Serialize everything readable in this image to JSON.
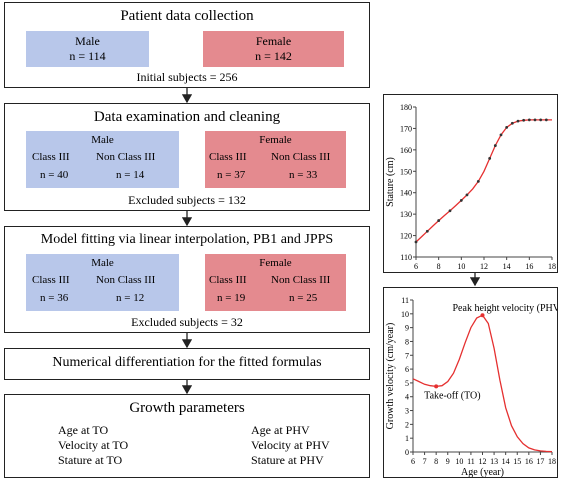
{
  "step1": {
    "title": "Patient data collection",
    "male_label": "Male",
    "male_n": "n = 114",
    "female_label": "Female",
    "female_n": "n = 142",
    "subjects": "Initial subjects = 256"
  },
  "step2": {
    "title": "Data examination and cleaning",
    "male_label": "Male",
    "female_label": "Female",
    "m_c3": "Class III",
    "m_nc3": "Non Class III",
    "m_c3_n": "n = 40",
    "m_nc3_n": "n = 14",
    "f_c3": "Class III",
    "f_nc3": "Non Class III",
    "f_c3_n": "n = 37",
    "f_nc3_n": "n = 33",
    "excluded": "Excluded subjects = 132"
  },
  "step3": {
    "title": "Model fitting via linear interpolation, PB1 and JPPS",
    "male_label": "Male",
    "female_label": "Female",
    "m_c3": "Class III",
    "m_nc3": "Non Class III",
    "m_c3_n": "n = 36",
    "m_nc3_n": "n = 12",
    "f_c3": "Class III",
    "f_nc3": "Non Class III",
    "f_c3_n": "n = 19",
    "f_nc3_n": "n = 25",
    "excluded": "Excluded subjects = 32"
  },
  "step4": {
    "title": "Numerical differentiation for the fitted formulas"
  },
  "step5": {
    "title": "Growth parameters",
    "left": [
      "Age at TO",
      "Velocity at TO",
      "Stature at TO"
    ],
    "right": [
      "Age at PHV",
      "Velocity at PHV",
      "Stature at PHV"
    ]
  },
  "colors": {
    "male": "#b8c7ea",
    "female": "#e48a8f",
    "curve": "#e53030"
  },
  "chart_data": [
    {
      "type": "line",
      "xlabel": "Age (year)",
      "ylabel": "Stature (cm)",
      "xlim": [
        6,
        18
      ],
      "ylim": [
        110,
        180
      ],
      "x_ticks": [
        "6",
        "8",
        "10",
        "12",
        "14",
        "16",
        "18"
      ],
      "y_ticks": [
        "110",
        "120",
        "130",
        "140",
        "150",
        "160",
        "170",
        "180"
      ],
      "series": [
        {
          "x": [
            6,
            6.5,
            7,
            7.5,
            8,
            8.5,
            9,
            9.5,
            10,
            10.5,
            11,
            11.5,
            12,
            12.5,
            13,
            13.5,
            14,
            14.5,
            15,
            15.5,
            16,
            16.5,
            17,
            17.5,
            18
          ],
          "y": [
            117,
            119.5,
            122,
            124.5,
            127,
            129.3,
            131.6,
            134,
            136.4,
            139,
            141.8,
            145.3,
            150,
            156,
            162,
            167,
            170.5,
            172.4,
            173.4,
            173.8,
            174,
            174,
            174,
            174,
            174
          ]
        }
      ],
      "markers": {
        "x": [
          6,
          7,
          8,
          9,
          10,
          10.5,
          11.5,
          12.5,
          13,
          13.5,
          14,
          14.5,
          15,
          15.5,
          16,
          16.5,
          17,
          17.5
        ],
        "y": [
          117,
          122,
          127,
          131.6,
          136.4,
          139,
          145.3,
          156,
          162,
          167,
          170.5,
          172.4,
          173.4,
          173.8,
          174,
          174,
          174,
          174
        ]
      }
    },
    {
      "type": "line",
      "xlabel": "Age (year)",
      "ylabel": "Growth velocity (cm/year)",
      "xlim": [
        6,
        18
      ],
      "ylim": [
        0,
        11
      ],
      "x_ticks": [
        "6",
        "7",
        "8",
        "9",
        "10",
        "11",
        "12",
        "13",
        "14",
        "15",
        "16",
        "17",
        "18"
      ],
      "y_ticks": [
        "0",
        "1",
        "2",
        "3",
        "4",
        "5",
        "6",
        "7",
        "8",
        "9",
        "10",
        "11"
      ],
      "series": [
        {
          "x": [
            6,
            6.5,
            7,
            7.5,
            8,
            8.5,
            9,
            9.5,
            10,
            10.5,
            11,
            11.5,
            12,
            12.5,
            13,
            13.5,
            14,
            14.5,
            15,
            15.5,
            16,
            16.5,
            17,
            17.5,
            18
          ],
          "y": [
            5.3,
            5.1,
            4.9,
            4.8,
            4.75,
            4.8,
            5.1,
            5.7,
            6.7,
            7.9,
            9.0,
            9.7,
            9.9,
            9.3,
            7.5,
            5.2,
            3.2,
            1.9,
            1.1,
            0.6,
            0.3,
            0.15,
            0.08,
            0.04,
            0.02
          ]
        }
      ],
      "annotations": [
        {
          "text": "Peak height velocity (PHV)",
          "x": 12,
          "y": 9.9
        },
        {
          "text": "Take-off (TO)",
          "x": 8,
          "y": 4.75
        }
      ]
    }
  ]
}
